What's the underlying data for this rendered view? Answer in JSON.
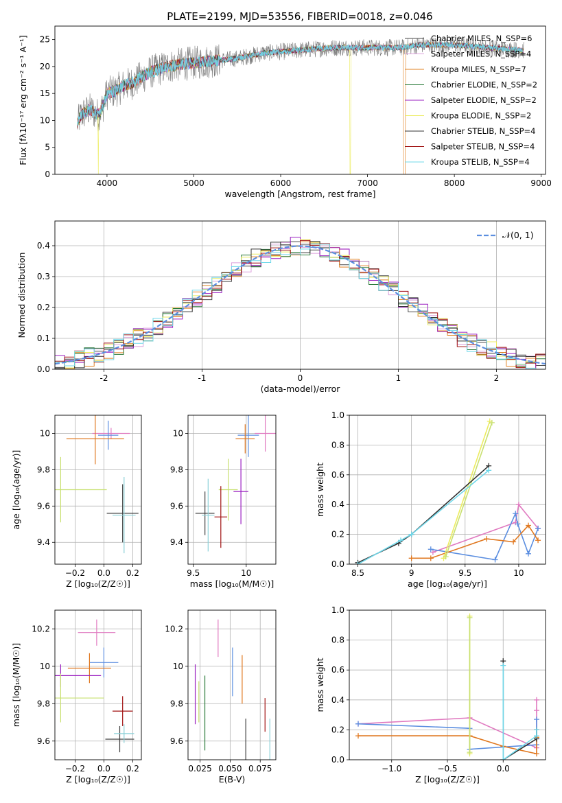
{
  "figure_title": "PLATE=2199, MJD=53556, FIBERID=0018, z=0.046",
  "colors": {
    "Chabrier MILES": "#4a4a4a",
    "Salpeter MILES": "#dca0dc",
    "Kroupa MILES": "#e08020",
    "Chabrier ELODIE": "#2a7a3a",
    "Salpeter ELODIE": "#9a1fc0",
    "Kroupa ELODIE": "#ecec60",
    "Chabrier STELIB": "#303030",
    "Salpeter STELIB": "#a01010",
    "Kroupa STELIB": "#70d8ea",
    "normal_curve": "#5b8ee0",
    "pink": "#e07ac0",
    "orange": "#e07820",
    "blue": "#5b8ee0",
    "lime": "#c8e070",
    "darkgray": "#404040",
    "teal": "#8ad0d8"
  },
  "chart_data": [
    {
      "type": "line",
      "id": "spectrum",
      "xlabel": "wavelength [Angstrom, rest frame]",
      "ylabel": "Flux [fλ10⁻¹⁷ erg cm⁻² s⁻¹ A⁻¹]",
      "xlim": [
        3400,
        9050
      ],
      "ylim": [
        0,
        27.5
      ],
      "xticks": [
        4000,
        5000,
        6000,
        7000,
        8000,
        9000
      ],
      "yticks": [
        0,
        5,
        10,
        15,
        20,
        25
      ],
      "legend": [
        "Chabrier MILES, N_SSP=6",
        "Salpeter MILES, N_SSP=4",
        "Kroupa MILES, N_SSP=7",
        "Chabrier ELODIE, N_SSP=2",
        "Salpeter ELODIE, N_SSP=2",
        "Kroupa ELODIE, N_SSP=2",
        "Chabrier STELIB, N_SSP=4",
        "Salpeter STELIB, N_SSP=4",
        "Kroupa STELIB, N_SSP=4"
      ],
      "legend_keys": [
        "Chabrier MILES",
        "Salpeter MILES",
        "Kroupa MILES",
        "Chabrier ELODIE",
        "Salpeter ELODIE",
        "Kroupa ELODIE",
        "Chabrier STELIB",
        "Salpeter STELIB",
        "Kroupa STELIB"
      ],
      "legend_loc": "top-right",
      "continuum": [
        [
          3650,
          9
        ],
        [
          3700,
          11
        ],
        [
          3800,
          12
        ],
        [
          3900,
          11
        ],
        [
          3950,
          12.5
        ],
        [
          4000,
          15
        ],
        [
          4100,
          15.5
        ],
        [
          4200,
          16.5
        ],
        [
          4300,
          17
        ],
        [
          4400,
          18
        ],
        [
          4500,
          19
        ],
        [
          4700,
          20
        ],
        [
          4900,
          20.5
        ],
        [
          5200,
          21
        ],
        [
          5500,
          21.5
        ],
        [
          5800,
          22.5
        ],
        [
          6200,
          23
        ],
        [
          6600,
          23.5
        ],
        [
          6800,
          23.5
        ],
        [
          7000,
          23.5
        ],
        [
          7400,
          23.5
        ],
        [
          7600,
          24
        ],
        [
          8000,
          24
        ],
        [
          8400,
          23.5
        ],
        [
          8800,
          23
        ]
      ],
      "dropouts": [
        [
          3900,
          "Kroupa ELODIE"
        ],
        [
          6800,
          "Kroupa ELODIE"
        ],
        [
          7420,
          "Kroupa MILES"
        ]
      ]
    },
    {
      "type": "histogram",
      "id": "residuals",
      "xlabel": "(data-model)/error",
      "ylabel": "Normed distribution",
      "xlim": [
        -2.5,
        2.5
      ],
      "ylim": [
        0,
        0.48
      ],
      "xticks": [
        -2,
        -1,
        0,
        1,
        2
      ],
      "yticks": [
        0.0,
        0.1,
        0.2,
        0.3,
        0.4
      ],
      "grid": true,
      "legend": [
        "𝒩(0, 1)"
      ],
      "legend_loc": "top-right",
      "bin_width": 0.1,
      "series_keys": [
        "Chabrier MILES",
        "Salpeter MILES",
        "Kroupa MILES",
        "Chabrier ELODIE",
        "Salpeter ELODIE",
        "Kroupa ELODIE",
        "Chabrier STELIB",
        "Salpeter STELIB",
        "Kroupa STELIB"
      ]
    },
    {
      "type": "errorbar",
      "id": "age-vs-Z",
      "xlabel": "Z [log₁₀(Z/Z☉)]",
      "ylabel": "age  [log₁₀(age/yr)]",
      "xlim": [
        -0.34,
        0.26
      ],
      "ylim": [
        9.28,
        10.1
      ],
      "xticks": [
        -0.2,
        0.0,
        0.2
      ],
      "xticklabels": [
        "−0.2",
        "0.0",
        "0.2"
      ],
      "yticks": [
        9.4,
        9.6,
        9.8,
        10.0
      ],
      "grid": true,
      "points": [
        {
          "x": 0.05,
          "y": 10.0,
          "xerr": 0.13,
          "yerr": 0.03,
          "color": "pink"
        },
        {
          "x": 0.03,
          "y": 9.99,
          "xerr": 0.07,
          "yerr": 0.08,
          "color": "blue"
        },
        {
          "x": -0.06,
          "y": 9.97,
          "xerr": 0.2,
          "yerr": 0.14,
          "color": "orange"
        },
        {
          "x": -0.3,
          "y": 9.69,
          "xerr": 0.32,
          "yerr": 0.18,
          "color": "lime"
        },
        {
          "x": 0.13,
          "y": 9.56,
          "xerr": 0.11,
          "yerr": 0.16,
          "color": "darkgray"
        },
        {
          "x": 0.14,
          "y": 9.55,
          "xerr": 0.08,
          "yerr": 0.21,
          "color": "teal"
        }
      ]
    },
    {
      "type": "errorbar",
      "id": "age-vs-mass",
      "xlabel": "mass [log₁₀(M/M☉)]",
      "ylabel": "",
      "xlim": [
        9.45,
        10.28
      ],
      "ylim": [
        9.28,
        10.1
      ],
      "xticks": [
        9.5,
        10.0
      ],
      "yticks": [
        9.4,
        9.6,
        9.8,
        10.0
      ],
      "grid": true,
      "points": [
        {
          "x": 10.18,
          "y": 10.0,
          "xerr": 0.1,
          "yerr": 0.1,
          "color": "pink"
        },
        {
          "x": 10.02,
          "y": 9.99,
          "xerr": 0.1,
          "yerr": 0.12,
          "color": "blue"
        },
        {
          "x": 9.99,
          "y": 9.97,
          "xerr": 0.09,
          "yerr": 0.08,
          "color": "orange"
        },
        {
          "x": 9.95,
          "y": 9.68,
          "xerr": 0.07,
          "yerr": 0.18,
          "color": "Salpeter ELODIE"
        },
        {
          "x": 9.83,
          "y": 9.69,
          "xerr": 0.09,
          "yerr": 0.17,
          "color": "lime"
        },
        {
          "x": 9.76,
          "y": 9.54,
          "xerr": 0.06,
          "yerr": 0.17,
          "color": "Salpeter STELIB"
        },
        {
          "x": 9.61,
          "y": 9.56,
          "xerr": 0.09,
          "yerr": 0.12,
          "color": "darkgray"
        },
        {
          "x": 9.64,
          "y": 9.55,
          "xerr": 0.06,
          "yerr": 0.2,
          "color": "teal"
        }
      ]
    },
    {
      "type": "line",
      "id": "mass-weight-vs-age",
      "xlabel": "age  [log₁₀(age/yr)]",
      "ylabel": "mass weight",
      "xlim": [
        8.42,
        10.25
      ],
      "ylim": [
        0,
        1.0
      ],
      "xticks": [
        8.5,
        9.0,
        9.5,
        10.0
      ],
      "yticks": [
        0.0,
        0.2,
        0.4,
        0.6,
        0.8,
        1.0
      ],
      "grid": true,
      "series": [
        {
          "color": "pink",
          "x": [
            9.2,
            9.97,
            10.0,
            10.18
          ],
          "y": [
            0.08,
            0.28,
            0.4,
            0.24
          ]
        },
        {
          "color": "blue",
          "x": [
            9.18,
            9.78,
            9.97,
            9.99,
            10.09,
            10.18
          ],
          "y": [
            0.1,
            0.03,
            0.34,
            0.27,
            0.07,
            0.24
          ]
        },
        {
          "color": "orange",
          "x": [
            9.0,
            9.18,
            9.7,
            9.95,
            10.09,
            10.18
          ],
          "y": [
            0.04,
            0.04,
            0.17,
            0.15,
            0.26,
            0.16
          ]
        },
        {
          "color": "Kroupa ELODIE",
          "x": [
            9.3,
            9.73
          ],
          "y": [
            0.04,
            0.96
          ]
        },
        {
          "color": "lime",
          "x": [
            9.32,
            9.75
          ],
          "y": [
            0.05,
            0.95
          ]
        },
        {
          "color": "Chabrier STELIB",
          "x": [
            8.5,
            8.88,
            9.0,
            9.72
          ],
          "y": [
            0.01,
            0.14,
            0.2,
            0.66
          ]
        },
        {
          "color": "Kroupa STELIB",
          "x": [
            8.5,
            8.9,
            9.0,
            9.72
          ],
          "y": [
            0.0,
            0.16,
            0.2,
            0.63
          ]
        }
      ]
    },
    {
      "type": "errorbar",
      "id": "mass-vs-Z",
      "xlabel": "Z [log₁₀(Z/Z☉)]",
      "ylabel": "mass [log₁₀(M/M☉)]",
      "xlim": [
        -0.34,
        0.26
      ],
      "ylim": [
        9.5,
        10.3
      ],
      "xticks": [
        -0.2,
        0.0,
        0.2
      ],
      "xticklabels": [
        "−0.2",
        "0.0",
        "0.2"
      ],
      "yticks": [
        9.6,
        9.8,
        10.0,
        10.2
      ],
      "grid": true,
      "points": [
        {
          "x": -0.05,
          "y": 10.18,
          "xerr": 0.13,
          "yerr": 0.07,
          "color": "pink"
        },
        {
          "x": 0.0,
          "y": 10.02,
          "xerr": 0.1,
          "yerr": 0.08,
          "color": "blue"
        },
        {
          "x": -0.1,
          "y": 9.99,
          "xerr": 0.15,
          "yerr": 0.08,
          "color": "orange"
        },
        {
          "x": -0.3,
          "y": 9.95,
          "xerr": 0.28,
          "yerr": 0.06,
          "color": "Salpeter ELODIE"
        },
        {
          "x": -0.3,
          "y": 9.83,
          "xerr": 0.3,
          "yerr": 0.13,
          "color": "lime"
        },
        {
          "x": 0.13,
          "y": 9.76,
          "xerr": 0.07,
          "yerr": 0.08,
          "color": "Salpeter STELIB"
        },
        {
          "x": 0.11,
          "y": 9.61,
          "xerr": 0.1,
          "yerr": 0.07,
          "color": "darkgray"
        },
        {
          "x": 0.14,
          "y": 9.64,
          "xerr": 0.07,
          "yerr": 0.05,
          "color": "teal"
        }
      ]
    },
    {
      "type": "errorbar",
      "id": "mass-vs-EBV",
      "xlabel": "E(B-V)",
      "ylabel": "",
      "xlim": [
        0.015,
        0.088
      ],
      "ylim": [
        9.5,
        10.3
      ],
      "xticks": [
        0.025,
        0.05,
        0.075
      ],
      "xticklabels": [
        "0.025",
        "0.050",
        "0.075"
      ],
      "yticks": [
        9.6,
        9.8,
        10.0,
        10.2
      ],
      "grid": true,
      "points": [
        {
          "x": 0.04,
          "y": 10.15,
          "xerr": 0,
          "yerr": 0.1,
          "color": "pink"
        },
        {
          "x": 0.052,
          "y": 9.97,
          "xerr": 0,
          "yerr": 0.13,
          "color": "blue"
        },
        {
          "x": 0.06,
          "y": 9.93,
          "xerr": 0,
          "yerr": 0.13,
          "color": "orange"
        },
        {
          "x": 0.021,
          "y": 9.85,
          "xerr": 0,
          "yerr": 0.16,
          "color": "Salpeter ELODIE"
        },
        {
          "x": 0.024,
          "y": 9.81,
          "xerr": 0,
          "yerr": 0.11,
          "color": "lime"
        },
        {
          "x": 0.029,
          "y": 9.75,
          "xerr": 0,
          "yerr": 0.2,
          "color": "Chabrier ELODIE"
        },
        {
          "x": 0.079,
          "y": 9.74,
          "xerr": 0,
          "yerr": 0.09,
          "color": "Salpeter STELIB"
        },
        {
          "x": 0.063,
          "y": 9.61,
          "xerr": 0,
          "yerr": 0.11,
          "color": "darkgray"
        },
        {
          "x": 0.083,
          "y": 9.61,
          "xerr": 0,
          "yerr": 0.11,
          "color": "teal"
        }
      ]
    },
    {
      "type": "line",
      "id": "mass-weight-vs-Z",
      "xlabel": "Z [log₁₀(Z/Z☉)]",
      "ylabel": "mass weight",
      "xlim": [
        -1.38,
        0.38
      ],
      "ylim": [
        0,
        1.0
      ],
      "xticks": [
        -1.0,
        -0.5,
        0.0
      ],
      "xticklabels": [
        "−1.0",
        "−0.5",
        "0.0"
      ],
      "yticks": [
        0.0,
        0.2,
        0.4,
        0.6,
        0.8,
        1.0
      ],
      "grid": true,
      "series": [
        {
          "color": "pink",
          "x": [
            -1.3,
            -0.3,
            0.3,
            0.3,
            0.3
          ],
          "y": [
            0.24,
            0.28,
            0.08,
            0.33,
            0.4
          ]
        },
        {
          "color": "blue",
          "x": [
            -1.3,
            -0.3,
            -0.3,
            0.3,
            0.3
          ],
          "y": [
            0.24,
            0.21,
            0.07,
            0.1,
            0.27
          ]
        },
        {
          "color": "orange",
          "x": [
            -1.3,
            -0.3,
            0.0,
            0.3,
            0.3
          ],
          "y": [
            0.16,
            0.16,
            0.09,
            0.04,
            0.15
          ]
        },
        {
          "color": "Kroupa ELODIE",
          "x": [
            -0.3,
            -0.3
          ],
          "y": [
            0.04,
            0.96
          ]
        },
        {
          "color": "lime",
          "x": [
            -0.3,
            -0.3
          ],
          "y": [
            0.05,
            0.95
          ]
        },
        {
          "color": "Chabrier STELIB",
          "x": [
            0.0,
            0.0,
            0.3,
            0.3
          ],
          "y": [
            0.66,
            0.0,
            0.14,
            0.2
          ]
        },
        {
          "color": "Kroupa STELIB",
          "x": [
            0.0,
            0.0,
            0.3,
            0.3
          ],
          "y": [
            0.63,
            0.0,
            0.16,
            0.2
          ]
        }
      ]
    }
  ]
}
